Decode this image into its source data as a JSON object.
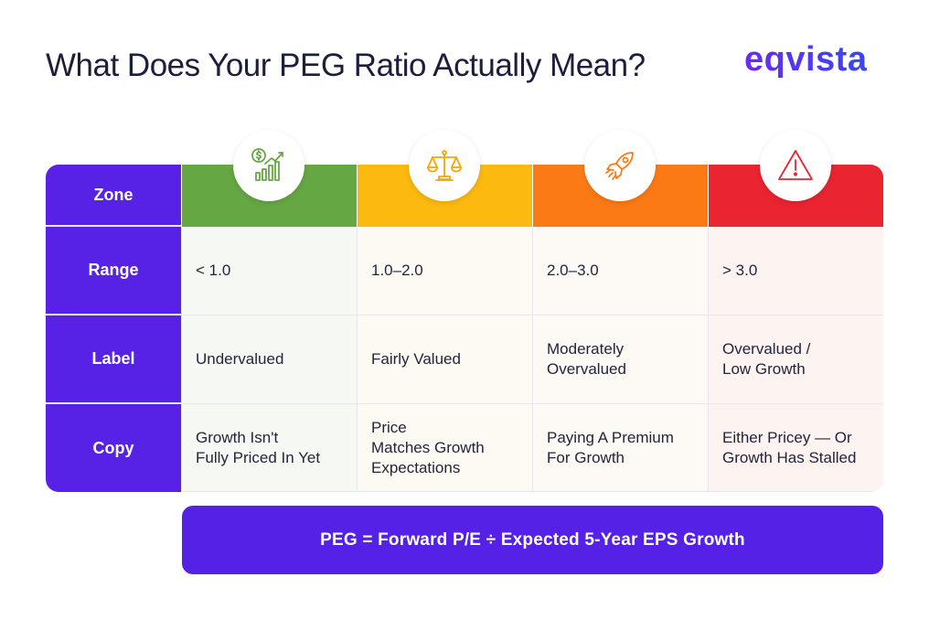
{
  "title": "What Does Your PEG Ratio Actually Mean?",
  "logo": "eqvista",
  "row_labels": {
    "zone": "Zone",
    "range": "Range",
    "label": "Label",
    "copy": "Copy"
  },
  "columns": [
    {
      "color": "#65a743",
      "icon": "money-growth-chart-icon",
      "range": "< 1.0",
      "label": "Undervalued",
      "copy": "Growth Isn't\nFully Priced In Yet"
    },
    {
      "color": "#fcb90f",
      "icon": "balance-scale-icon",
      "range": "1.0–2.0",
      "label": "Fairly Valued",
      "copy": "Price\nMatches Growth\nExpectations"
    },
    {
      "color": "#fb7a16",
      "icon": "rocket-icon",
      "range": "2.0–3.0",
      "label": "Moderately\nOvervalued",
      "copy": "Paying A Premium\nFor Growth"
    },
    {
      "color": "#ea2430",
      "icon": "warning-icon",
      "range": "> 3.0",
      "label": "Overvalued /\nLow Growth",
      "copy": "Either Pricey — Or\nGrowth Has Stalled"
    }
  ],
  "formula": "PEG = Forward P/E ÷ Expected 5-Year EPS Growth"
}
